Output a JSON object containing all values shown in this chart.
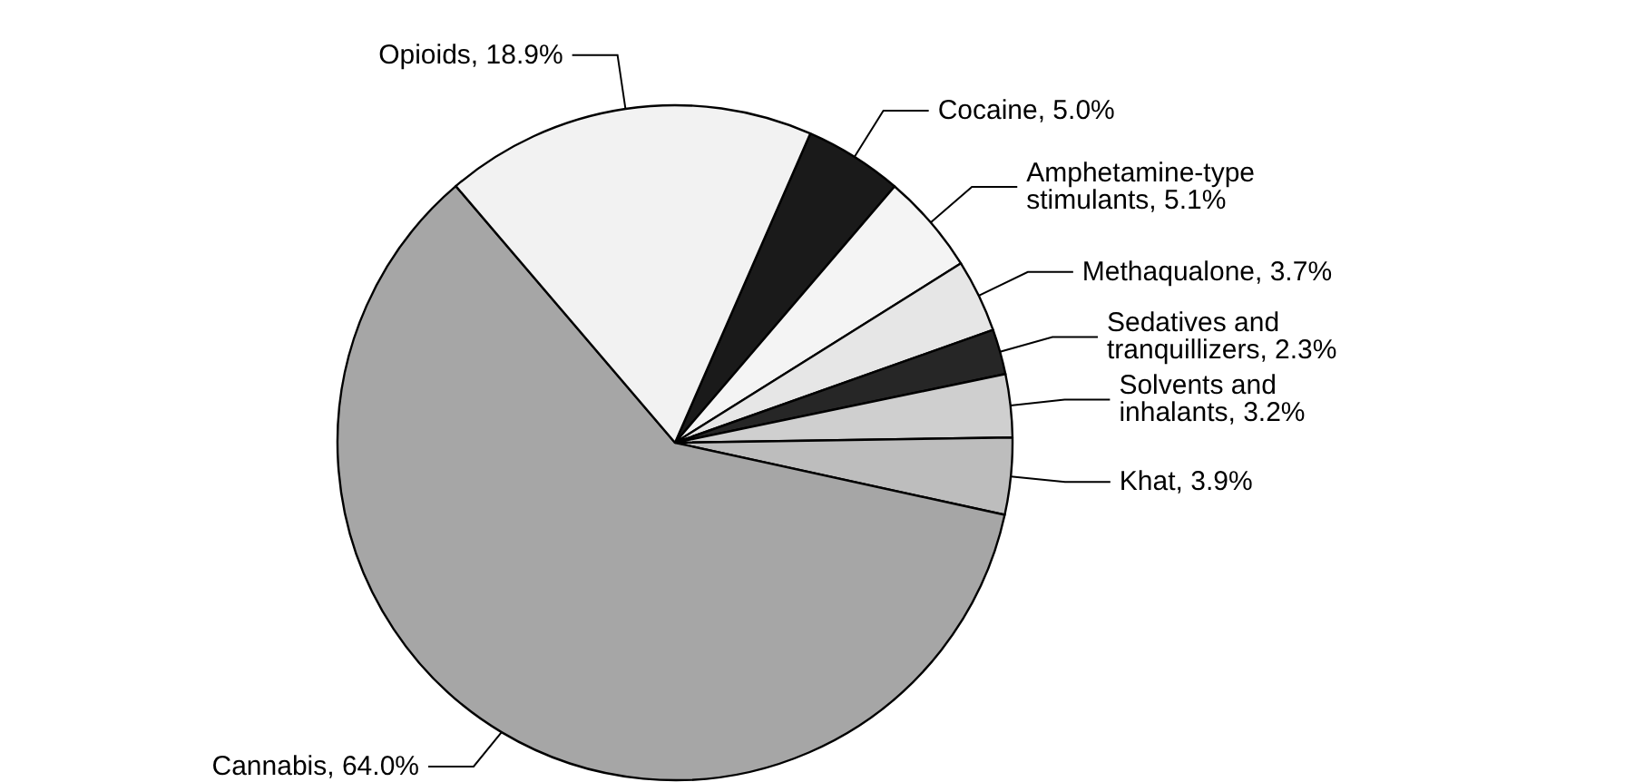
{
  "chart_data": {
    "type": "pie",
    "categories": [
      "Cocaine",
      "Amphetamine-type stimulants",
      "Methaqualone",
      "Sedatives and tranquillizers",
      "Solvents and inhalants",
      "Khat",
      "Cannabis",
      "Opioids"
    ],
    "values": [
      5.0,
      5.1,
      3.7,
      2.3,
      3.2,
      3.9,
      64.0,
      18.9
    ],
    "value_labels": [
      "5.0%",
      "5.1%",
      "3.7%",
      "2.3%",
      "3.2%",
      "3.9%",
      "64.0%",
      "18.9%"
    ],
    "colors": [
      "#1a1a1a",
      "#f4f4f4",
      "#e6e6e6",
      "#262626",
      "#cfcfcf",
      "#bdbdbd",
      "#a6a6a6",
      "#f2f2f2"
    ],
    "legend": false
  }
}
